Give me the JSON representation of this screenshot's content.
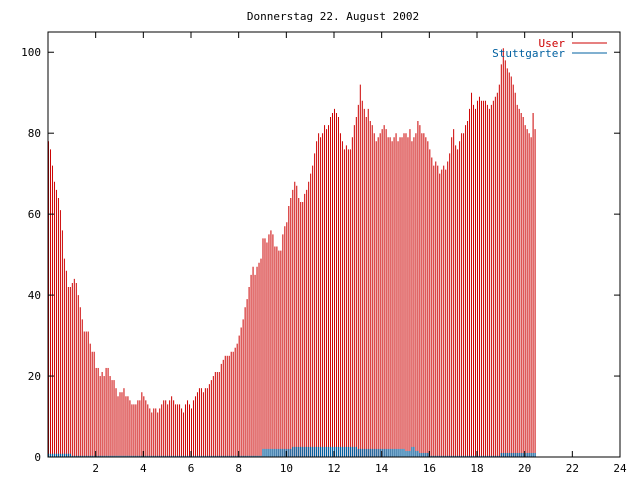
{
  "chart_data": {
    "type": "bar",
    "title": "Donnerstag 22. August 2002",
    "xlabel": "",
    "ylabel": "",
    "xlim": [
      0,
      24
    ],
    "ylim": [
      0,
      105
    ],
    "xticks": [
      "2",
      "4",
      "6",
      "8",
      "10",
      "12",
      "14",
      "16",
      "18",
      "20",
      "22",
      "24"
    ],
    "yticks": [
      "0",
      "20",
      "40",
      "60",
      "80",
      "100"
    ],
    "grid": false,
    "legend_position": "top-right",
    "interval_hours": 0.08333,
    "series": [
      {
        "name": "User",
        "color": "#cc0000",
        "style": "impulses",
        "values": [
          78,
          76,
          72,
          68,
          66,
          64,
          61,
          56,
          49,
          46,
          42,
          42,
          43,
          44,
          43,
          40,
          37,
          34,
          31,
          31,
          31,
          28,
          26,
          26,
          22,
          22,
          20,
          21,
          20,
          22,
          22,
          20,
          19,
          19,
          17,
          15,
          16,
          16,
          17,
          15,
          15,
          14,
          13,
          13,
          13,
          14,
          14,
          16,
          15,
          14,
          13,
          12,
          11,
          12,
          12,
          11,
          12,
          13,
          14,
          14,
          13,
          14,
          15,
          14,
          13,
          13,
          13,
          12,
          11,
          13,
          14,
          13,
          12,
          14,
          15,
          16,
          17,
          17,
          16,
          17,
          17,
          18,
          19,
          20,
          21,
          21,
          21,
          23,
          24,
          25,
          25,
          25,
          26,
          26,
          27,
          28,
          30,
          32,
          34,
          37,
          39,
          42,
          45,
          47,
          45,
          47,
          48,
          49,
          54,
          54,
          53,
          55,
          56,
          55,
          52,
          52,
          51,
          51,
          55,
          57,
          58,
          62,
          64,
          66,
          68,
          67,
          64,
          63,
          63,
          65,
          66,
          68,
          70,
          72,
          75,
          78,
          80,
          79,
          80,
          82,
          81,
          82,
          84,
          85,
          86,
          85,
          84,
          80,
          78,
          76,
          77,
          76,
          76,
          79,
          82,
          84,
          87,
          92,
          88,
          86,
          84,
          86,
          83,
          82,
          80,
          78,
          79,
          80,
          81,
          82,
          81,
          79,
          79,
          78,
          79,
          80,
          78,
          79,
          79,
          80,
          80,
          79,
          81,
          78,
          79,
          80,
          83,
          82,
          80,
          80,
          79,
          78,
          76,
          74,
          72,
          73,
          72,
          70,
          71,
          72,
          71,
          73,
          75,
          79,
          81,
          77,
          76,
          78,
          80,
          80,
          82,
          83,
          86,
          90,
          87,
          86,
          88,
          89,
          88,
          88,
          88,
          87,
          86,
          87,
          88,
          89,
          90,
          92,
          97,
          101,
          98,
          96,
          95,
          94,
          92,
          90,
          87,
          86,
          85,
          84,
          82,
          81,
          80,
          79,
          85,
          81
        ]
      },
      {
        "name": "Stuttgarter",
        "color": "#0060a0",
        "style": "impulses",
        "values": [
          0.8,
          0.8,
          0.8,
          0.8,
          0.8,
          0.8,
          0.8,
          0.8,
          0.8,
          0.8,
          0.8,
          0.8,
          0.3,
          0.3,
          0.3,
          0.3,
          0.3,
          0.3,
          0.3,
          0.3,
          0.3,
          0.3,
          0.3,
          0.3,
          0.3,
          0.3,
          0.3,
          0.3,
          0.3,
          0.3,
          0.3,
          0.3,
          0.3,
          0.3,
          0.3,
          0.3,
          0.3,
          0.3,
          0.3,
          0.3,
          0.3,
          0.3,
          0.3,
          0.3,
          0.3,
          0.3,
          0.3,
          0.3,
          0.3,
          0.3,
          0.3,
          0.3,
          0.3,
          0.3,
          0.3,
          0.3,
          0.3,
          0.3,
          0.3,
          0.3,
          0.3,
          0.3,
          0.3,
          0.3,
          0.3,
          0.3,
          0.3,
          0.3,
          0.3,
          0.3,
          0.3,
          0.3,
          0.3,
          0.3,
          0.3,
          0.3,
          0.3,
          0.3,
          0.3,
          0.3,
          0.3,
          0.3,
          0.3,
          0.3,
          0.3,
          0.3,
          0.3,
          0.3,
          0.3,
          0.3,
          0.3,
          0.3,
          0.3,
          0.3,
          0.3,
          0.3,
          0.3,
          0.3,
          0.3,
          0.3,
          0.3,
          0.3,
          0.3,
          0.3,
          0.3,
          0.3,
          0.3,
          0.3,
          2,
          2,
          2,
          2,
          2,
          2,
          2,
          2,
          2,
          2,
          2,
          2,
          2,
          2,
          2,
          2.5,
          2.5,
          2.5,
          2.5,
          2.5,
          2.5,
          2.5,
          2.5,
          2.5,
          2.5,
          2.5,
          2.5,
          2.5,
          2.5,
          2.5,
          2.5,
          2.5,
          2.5,
          2.5,
          2.5,
          2.5,
          2.5,
          2.5,
          2.5,
          2.5,
          2.5,
          2.5,
          2.5,
          2.5,
          2.5,
          2.5,
          2.5,
          2.5,
          2,
          2,
          2,
          2,
          2,
          2,
          2,
          2,
          2,
          2,
          2,
          2,
          2,
          2,
          2,
          2,
          2,
          2,
          2,
          2,
          2,
          2,
          2,
          2,
          1.5,
          1.5,
          1.5,
          2.5,
          2.5,
          1.5,
          1.5,
          1,
          1,
          1,
          1,
          1,
          0.3,
          0.3,
          0.3,
          0.3,
          0.3,
          0.3,
          0.3,
          0.3,
          0.3,
          0.3,
          0.3,
          0.3,
          0.3,
          0.3,
          0.3,
          0.3,
          0.3,
          0.3,
          0.3,
          0.3,
          0.3,
          0.3,
          0.3,
          0.3,
          0.3,
          0.3,
          0.3,
          0.3,
          0.3,
          0.3,
          0.3,
          0.3,
          0.3,
          0.3,
          0.3,
          0.3,
          1,
          1,
          1,
          1,
          1,
          1,
          1,
          1,
          1,
          1,
          1,
          1,
          1,
          1,
          1,
          1,
          1,
          1
        ]
      }
    ]
  }
}
